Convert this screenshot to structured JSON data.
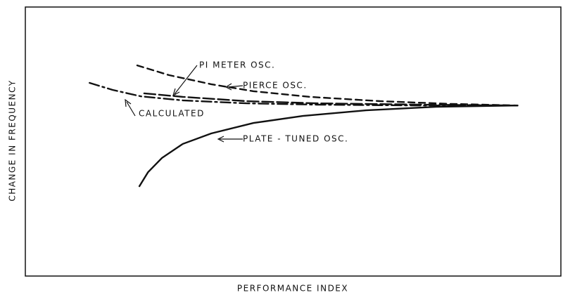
{
  "chart_data": {
    "type": "line",
    "x_label": "PERFORMANCE INDEX",
    "y_label": "CHANGE IN FREQUENCY",
    "xlim": [
      0,
      100
    ],
    "ylim": [
      0,
      100
    ],
    "series": [
      {
        "name": "PLATE - TUNED OSC.",
        "color": "#111111",
        "dash": "solid",
        "x": [
          21.3,
          22.9,
          25.5,
          29.4,
          34.7,
          42.6,
          51.8,
          63.6,
          76.7,
          91.9
        ],
        "values": [
          33.4,
          38.6,
          43.9,
          49.1,
          53.0,
          56.9,
          59.5,
          61.6,
          62.9,
          63.4
        ]
      },
      {
        "name": "CALCULATED",
        "color": "#111111",
        "dash": "dashdot",
        "x": [
          12.0,
          16.3,
          21.6,
          29.4,
          41.3,
          54.4,
          74.1,
          91.9
        ],
        "values": [
          71.8,
          69.2,
          66.8,
          65.3,
          64.2,
          63.7,
          63.4,
          63.4
        ]
      },
      {
        "name": "PIERCE OSC.",
        "color": "#111111",
        "dash": "dashed",
        "x": [
          20.9,
          26.8,
          34.7,
          42.6,
          53.1,
          66.2,
          79.4,
          91.9
        ],
        "values": [
          78.3,
          74.7,
          71.3,
          68.7,
          66.6,
          65.0,
          64.0,
          63.4
        ]
      },
      {
        "name": "PI METER OSC.",
        "color": "#111111",
        "dash": "longdash",
        "x": [
          22.2,
          29.4,
          41.3,
          54.4,
          74.1,
          91.9
        ],
        "values": [
          67.9,
          66.6,
          65.0,
          64.2,
          63.7,
          63.4
        ]
      }
    ]
  }
}
